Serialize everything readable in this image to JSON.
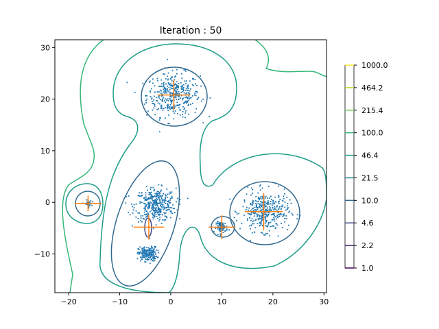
{
  "chart_data": {
    "type": "scatter",
    "title": "Iteration : 50",
    "xlabel": "",
    "ylabel": "",
    "xlim": [
      -22.7,
      30.5
    ],
    "ylim": [
      -17.5,
      31.5
    ],
    "x_ticks": [
      -20,
      -10,
      0,
      10,
      20,
      30
    ],
    "y_ticks": [
      -10,
      0,
      10,
      20,
      30
    ],
    "grid": false,
    "point_color": "#1f77b4",
    "marker_color": "#ff7f0e",
    "clusters": [
      {
        "center": [
          0.5,
          20.8
        ],
        "spread": [
          2.6,
          2.1
        ],
        "count": 380
      },
      {
        "center": [
          -3.0,
          -0.5
        ],
        "spread": [
          2.0,
          1.6
        ],
        "count": 380
      },
      {
        "center": [
          -4.5,
          -10.0
        ],
        "spread": [
          0.9,
          0.7
        ],
        "count": 200
      },
      {
        "center": [
          -16.2,
          -0.3
        ],
        "spread": [
          0.35,
          0.35
        ],
        "count": 40
      },
      {
        "center": [
          10.0,
          -4.8
        ],
        "spread": [
          0.55,
          0.5
        ],
        "count": 90
      },
      {
        "center": [
          18.5,
          -1.8
        ],
        "spread": [
          2.3,
          1.9
        ],
        "count": 380
      }
    ],
    "gaussian_markers": [
      {
        "center": [
          0.6,
          20.8
        ],
        "sx": 3.2,
        "sy": 3.0
      },
      {
        "center": [
          -16.2,
          -0.2
        ],
        "sx": 2.6,
        "sy": 1.5
      },
      {
        "center": [
          -4.3,
          -4.8
        ],
        "sx": 3.0,
        "sy": 2.4
      },
      {
        "center": [
          10.0,
          -4.8
        ],
        "sx": 2.6,
        "sy": 2.3
      },
      {
        "center": [
          18.2,
          -1.8
        ],
        "sx": 3.7,
        "sy": 3.6
      }
    ],
    "colorbar": {
      "levels": [
        "1000.0",
        "464.2",
        "215.4",
        "100.0",
        "46.4",
        "21.5",
        "10.0",
        "4.6",
        "2.2",
        "1.0"
      ],
      "colors": [
        "#fde725",
        "#b5de2b",
        "#6ece58",
        "#35b779",
        "#1f9e89",
        "#26828e",
        "#31688e",
        "#3e4989",
        "#482878",
        "#440154"
      ]
    }
  }
}
